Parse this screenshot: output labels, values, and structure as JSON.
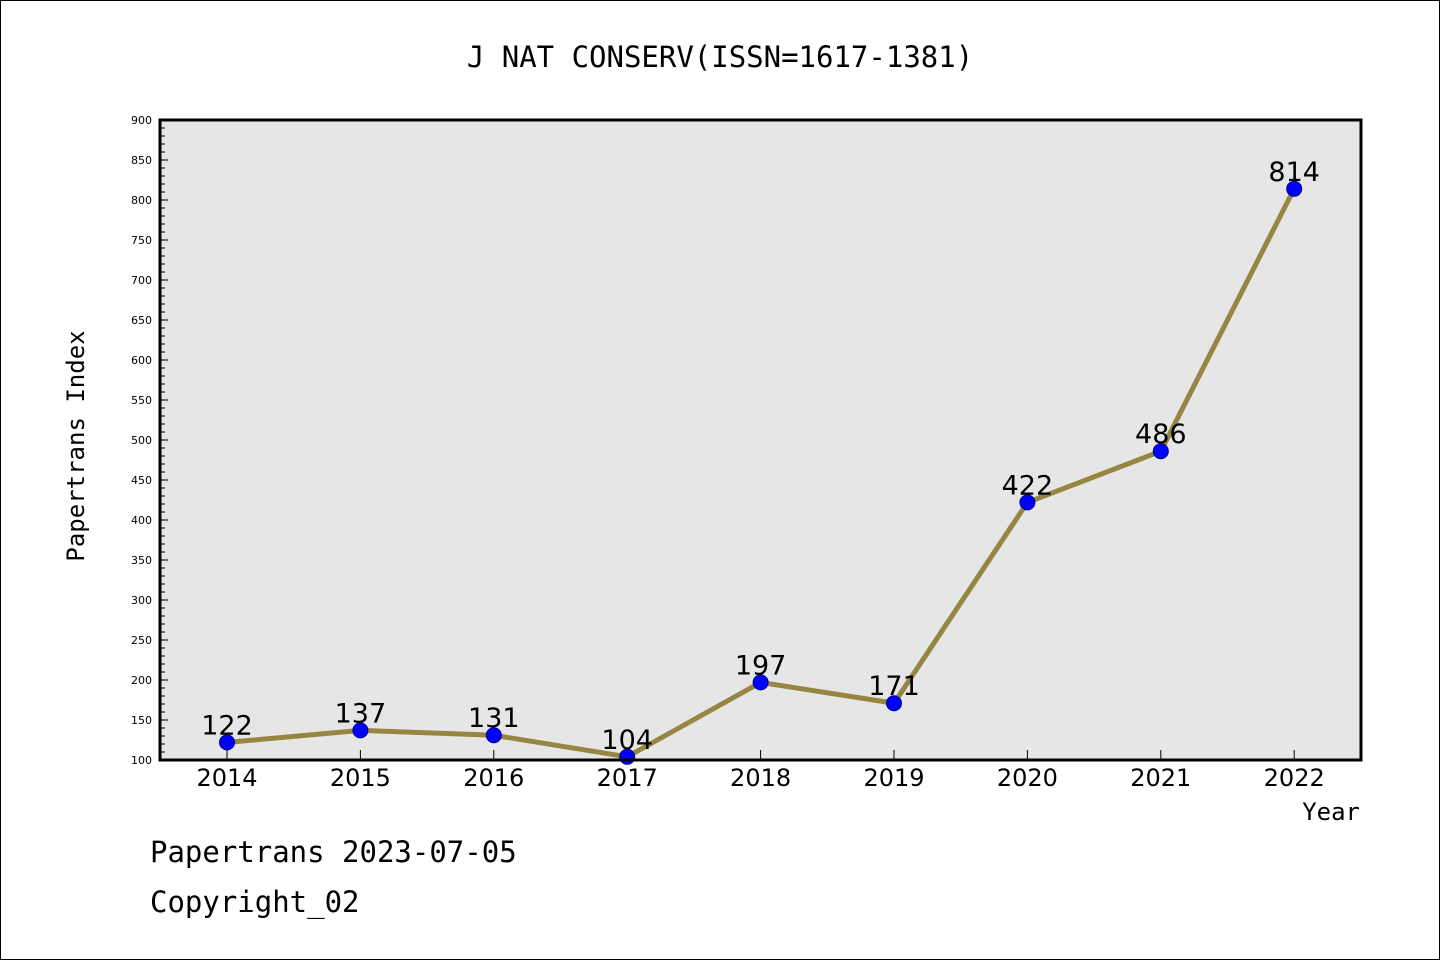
{
  "chart_data": {
    "type": "line",
    "title": "J NAT CONSERV(ISSN=1617-1381)",
    "xlabel": "Year",
    "ylabel": "Papertrans Index",
    "categories": [
      "2014",
      "2015",
      "2016",
      "2017",
      "2018",
      "2019",
      "2020",
      "2021",
      "2022"
    ],
    "values": [
      122,
      137,
      131,
      104,
      197,
      171,
      422,
      486,
      814
    ],
    "ylim": [
      100,
      900
    ],
    "ytick_step": 50,
    "grid": false,
    "plot_background": "#e6e6e6",
    "line_color": "#978542",
    "marker_color": "#0000ff",
    "data_labels": true
  },
  "footer": {
    "line1": "Papertrans 2023-07-05",
    "line2": "Copyright_02"
  }
}
